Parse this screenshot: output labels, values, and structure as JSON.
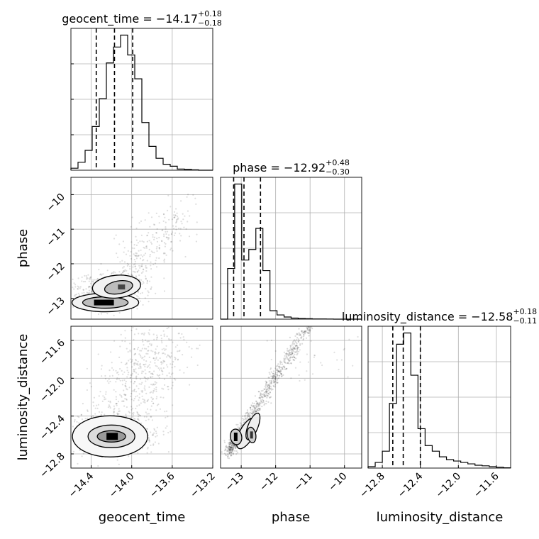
{
  "chart_data": {
    "type": "corner",
    "parameters": [
      "geocent_time",
      "phase",
      "luminosity_distance"
    ],
    "titles": [
      {
        "param": "geocent_time",
        "prefix": "geocent_time = ",
        "median": "−14.17",
        "upper": "+0.18",
        "lower": "−0.18"
      },
      {
        "param": "phase",
        "prefix": "phase = ",
        "median": "−12.92",
        "upper": "+0.48",
        "lower": "−0.30"
      },
      {
        "param": "luminosity_distance",
        "prefix": "luminosity_distance = ",
        "median": "−12.58",
        "upper": "+0.18",
        "lower": "−0.11"
      }
    ],
    "axes": {
      "geocent_time": {
        "range": [
          -14.6,
          -13.2
        ],
        "ticks": [
          -14.4,
          -14.0,
          -13.6,
          -13.2
        ],
        "tick_labels": [
          "−14.4",
          "−14.0",
          "−13.6",
          "−13.2"
        ]
      },
      "phase": {
        "range": [
          -13.6,
          -9.5
        ],
        "ticks": [
          -13,
          -12,
          -11,
          -10
        ],
        "tick_labels": [
          "−13",
          "−12",
          "−11",
          "−10"
        ]
      },
      "luminosity_distance": {
        "range": [
          -12.95,
          -11.45
        ],
        "ticks": [
          -12.8,
          -12.4,
          -12.0,
          -11.6
        ],
        "tick_labels": [
          "−12.8",
          "−12.4",
          "−12.0",
          "−11.6"
        ]
      }
    },
    "quantiles": {
      "geocent_time": [
        -14.35,
        -14.17,
        -13.99
      ],
      "phase": [
        -13.22,
        -12.92,
        -12.44
      ],
      "luminosity_distance": [
        -12.69,
        -12.58,
        -12.4
      ]
    },
    "histograms": {
      "geocent_time": {
        "start": -14.6,
        "width": 0.07,
        "counts": [
          0.5,
          2,
          5,
          11,
          18,
          27,
          31,
          34,
          29,
          23,
          12,
          6,
          3,
          1.5,
          1,
          0.3,
          0.2,
          0.1,
          0,
          0
        ]
      },
      "phase": {
        "start": -13.6,
        "width": 0.205,
        "counts": [
          0,
          24,
          64,
          28,
          33,
          43,
          23,
          4,
          2,
          1,
          0.5,
          0.3,
          0.2,
          0.1,
          0.1,
          0.05,
          0,
          0,
          0,
          0
        ]
      },
      "luminosity_distance": {
        "start": -12.95,
        "width": 0.075,
        "counts": [
          0.5,
          2,
          6,
          23,
          44,
          48,
          33,
          14,
          8,
          6,
          4,
          3,
          2.5,
          2,
          1.5,
          1,
          0.8,
          0.5,
          0.3,
          0.1
        ]
      }
    },
    "density_modes": {
      "phase_vs_geocent_time": [
        {
          "x": -14.26,
          "y": -13.12
        },
        {
          "x": -14.15,
          "y": -12.66
        }
      ],
      "luminosity_distance_vs_geocent_time": [
        {
          "x": -14.2,
          "y": -12.6
        }
      ],
      "luminosity_distance_vs_phase": [
        {
          "x": -13.15,
          "y": -12.62
        },
        {
          "x": -12.7,
          "y": -12.6
        }
      ]
    },
    "grid": true,
    "legend": "none"
  }
}
